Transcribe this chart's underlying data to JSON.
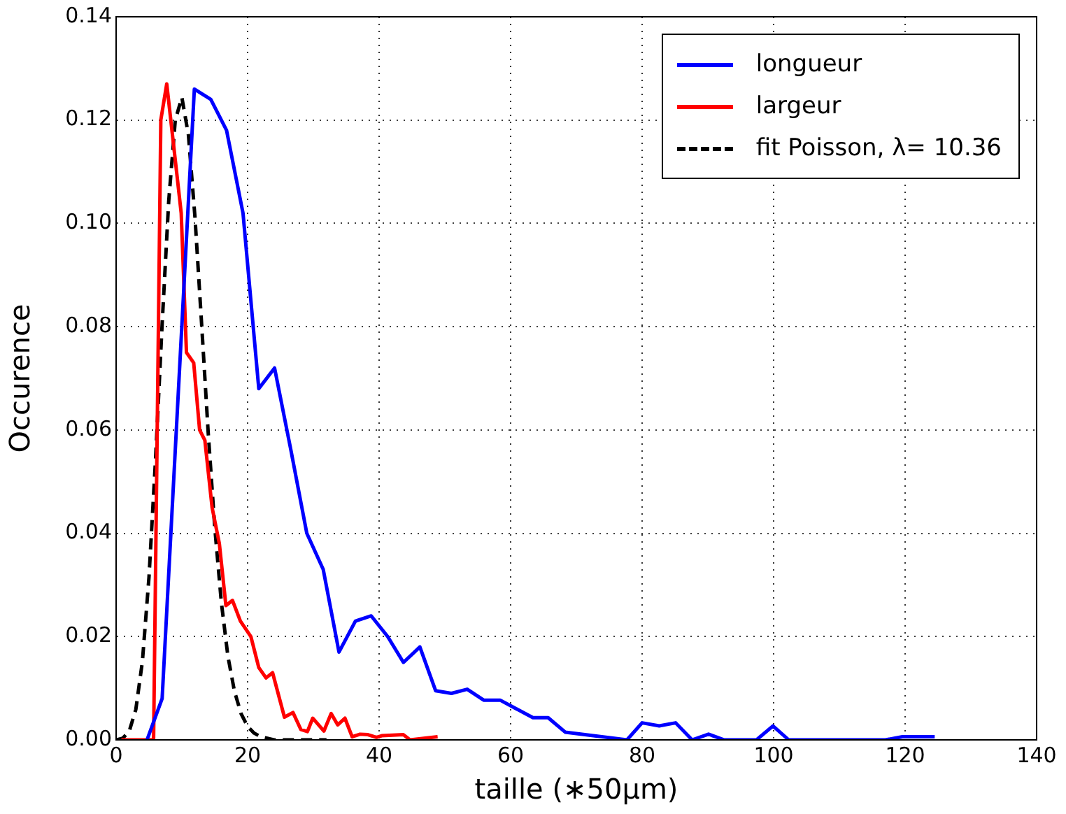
{
  "chart_data": {
    "type": "line",
    "xlabel": "taille (∗50μm)",
    "ylabel": "Occurence",
    "xlim": [
      0,
      140
    ],
    "xticks": [
      0,
      20,
      40,
      60,
      80,
      100,
      120,
      140
    ],
    "ylim": [
      0,
      0.14
    ],
    "yticks": [
      {
        "value": 0,
        "label": "0.00"
      },
      {
        "value": 0.02,
        "label": "0.02"
      },
      {
        "value": 0.04,
        "label": "0.04"
      },
      {
        "value": 0.06,
        "label": "0.06"
      },
      {
        "value": 0.08,
        "label": "0.08"
      },
      {
        "value": 0.1,
        "label": "0.10"
      },
      {
        "value": 0.12,
        "label": "0.12"
      },
      {
        "value": 0.14,
        "label": "0.14"
      }
    ],
    "grid": true,
    "legend": "top right",
    "marker": "none",
    "series": [
      {
        "name": "longueur",
        "color": "#0000ff",
        "line_style": "solid",
        "x": [
          4.7,
          7.0,
          11.9,
          14.4,
          16.8,
          19.3,
          21.7,
          24.1,
          26.6,
          29.0,
          31.5,
          33.9,
          36.4,
          38.8,
          41.3,
          43.7,
          46.2,
          48.6,
          51.0,
          53.4,
          55.9,
          58.4,
          60.9,
          63.4,
          65.7,
          68.3,
          77.7,
          80.0,
          82.6,
          85.1,
          87.6,
          90.1,
          92.5,
          97.4,
          99.9,
          102.3,
          117.0,
          119.6,
          124.5
        ],
        "values": [
          0,
          0.008,
          0.126,
          0.124,
          0.118,
          0.102,
          0.068,
          0.072,
          0.056,
          0.04,
          0.033,
          0.017,
          0.023,
          0.024,
          0.02,
          0.015,
          0.018,
          0.0095,
          0.009,
          0.0098,
          0.0077,
          0.0077,
          0.006,
          0.0043,
          0.0043,
          0.0015,
          0,
          0.0033,
          0.0027,
          0.0033,
          0,
          0.0011,
          0,
          0,
          0.0027,
          0,
          0,
          0.0006,
          0.0006
        ]
      },
      {
        "name": "largeur",
        "color": "#ff0000",
        "line_style": "solid",
        "x": [
          0.8,
          5.7,
          6.8,
          7.7,
          9.9,
          10.7,
          11.8,
          12.7,
          13.5,
          14.6,
          15.7,
          16.7,
          17.7,
          18.9,
          20.5,
          21.7,
          22.8,
          23.8,
          25.6,
          26.9,
          28.1,
          29.1,
          29.9,
          31.6,
          32.7,
          33.7,
          34.8,
          35.9,
          37.1,
          38.3,
          39.6,
          40.4,
          43.7,
          44.7,
          48.9
        ],
        "values": [
          0,
          0,
          0.12,
          0.127,
          0.102,
          0.075,
          0.073,
          0.06,
          0.058,
          0.045,
          0.038,
          0.026,
          0.027,
          0.023,
          0.02,
          0.014,
          0.012,
          0.013,
          0.0044,
          0.0053,
          0.002,
          0.0016,
          0.0042,
          0.0017,
          0.0051,
          0.0029,
          0.0042,
          0.0006,
          0.0011,
          0.001,
          0.0005,
          0.0008,
          0.001,
          0,
          0.0006
        ]
      },
      {
        "name": "fit Poisson, λ= 10.36",
        "color": "#000000",
        "line_style": "dashed",
        "x": [
          0,
          1,
          2,
          3,
          4,
          5,
          6,
          7,
          8,
          9,
          10,
          11,
          12,
          13,
          14,
          15,
          16,
          17,
          18,
          19,
          20,
          21,
          22,
          23,
          24,
          26,
          28,
          30,
          32
        ],
        "values": [
          0,
          0.0003,
          0.0017,
          0.0059,
          0.0152,
          0.0315,
          0.0544,
          0.0805,
          0.1043,
          0.12,
          0.1244,
          0.1171,
          0.1011,
          0.0806,
          0.0596,
          0.0412,
          0.0267,
          0.0162,
          0.0094,
          0.0051,
          0.0026,
          0.0013,
          0.0006,
          0.0003,
          0,
          0,
          0,
          0,
          0
        ]
      }
    ]
  }
}
